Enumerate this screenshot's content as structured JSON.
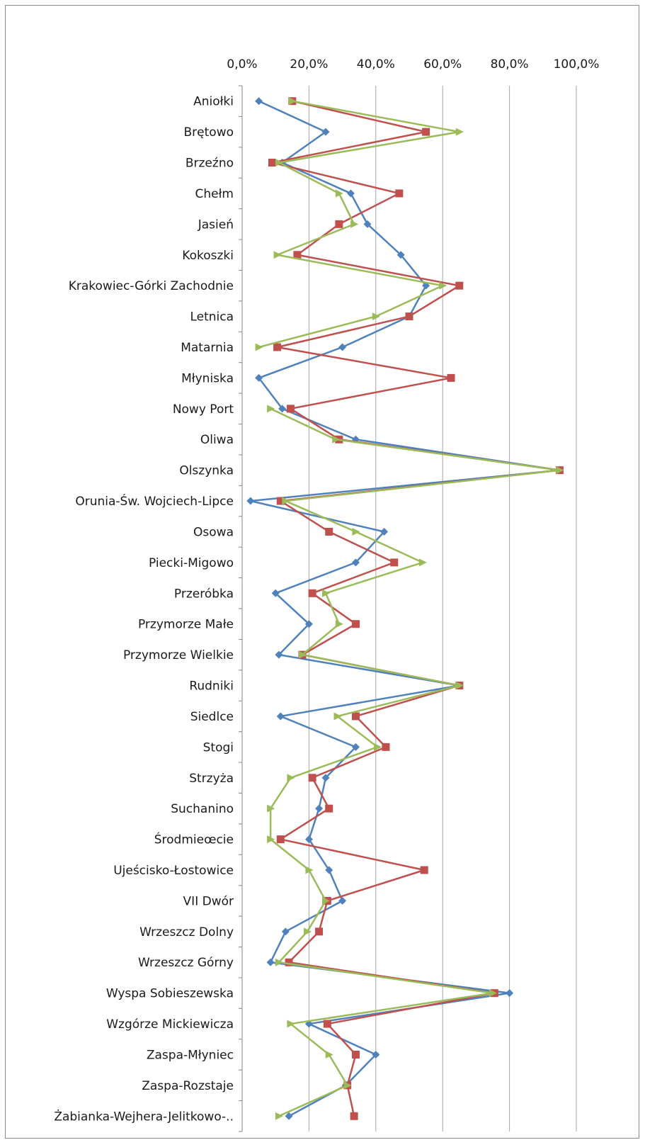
{
  "chart_data": {
    "type": "line",
    "orientation": "horizontal",
    "title": "",
    "xlabel": "",
    "ylabel": "",
    "xlim": [
      0,
      100
    ],
    "x_ticks": [
      "0,0%",
      "20,0%",
      "40,0%",
      "60,0%",
      "80,0%",
      "100,0%"
    ],
    "x_axis_position": "top",
    "grid": "vertical major gridlines",
    "legend": "none",
    "categories": [
      "Aniołki",
      "Brętowo",
      "Brzeźno",
      "Chełm",
      "Jasień",
      "Kokoszki",
      "Krakowiec-Górki Zachodnie",
      "Letnica",
      "Matarnia",
      "Młyniska",
      "Nowy Port",
      "Oliwa",
      "Olszynka",
      "Orunia-Św. Wojciech-Lipce",
      "Osowa",
      "Piecki-Migowo",
      "Przeróbka",
      "Przymorze Małe",
      "Przymorze Wielkie",
      "Rudniki",
      "Siedlce",
      "Stogi",
      "Strzyża",
      "Suchanino",
      "Środmieœcie",
      "Ujeścisko-Łostowice",
      "VII Dwór",
      "Wrzeszcz Dolny",
      "Wrzeszcz Górny",
      "Wyspa Sobieszewska",
      "Wzgórze Mickiewicza",
      "Zaspa-Młyniec",
      "Zaspa-Rozstaje",
      "Żabianka-Wejhera-Jelitkowo-.."
    ],
    "series": [
      {
        "color": "#4f81bd",
        "marker": "diamond",
        "values": [
          5,
          25,
          12,
          32.5,
          37.5,
          47.5,
          55,
          50,
          30,
          5,
          12,
          34,
          95,
          2.5,
          42.5,
          34,
          10,
          20,
          11,
          65,
          11.5,
          34,
          25,
          23,
          20,
          26,
          30,
          13,
          8.5,
          80,
          20,
          40,
          31,
          14
        ]
      },
      {
        "color": "#c0504d",
        "marker": "square",
        "values": [
          15,
          55,
          9,
          47,
          29,
          16.5,
          65,
          50,
          10.5,
          62.5,
          14.5,
          29,
          95,
          11.5,
          26,
          45.5,
          21,
          34,
          18,
          65,
          34,
          43,
          21,
          26,
          11.5,
          54.5,
          25.5,
          23,
          14,
          75.5,
          25.5,
          34,
          31.5,
          33.5
        ]
      },
      {
        "color": "#9bbb59",
        "marker": "triangle",
        "values": [
          15,
          65,
          11,
          29,
          33.5,
          10.5,
          60,
          40,
          5,
          null,
          8.5,
          28,
          95,
          13,
          34,
          54,
          25,
          29,
          18,
          65,
          28.5,
          40.5,
          14.5,
          8.5,
          8.5,
          20,
          25,
          19.5,
          11,
          75,
          14.5,
          26,
          31.5,
          11
        ]
      }
    ]
  }
}
